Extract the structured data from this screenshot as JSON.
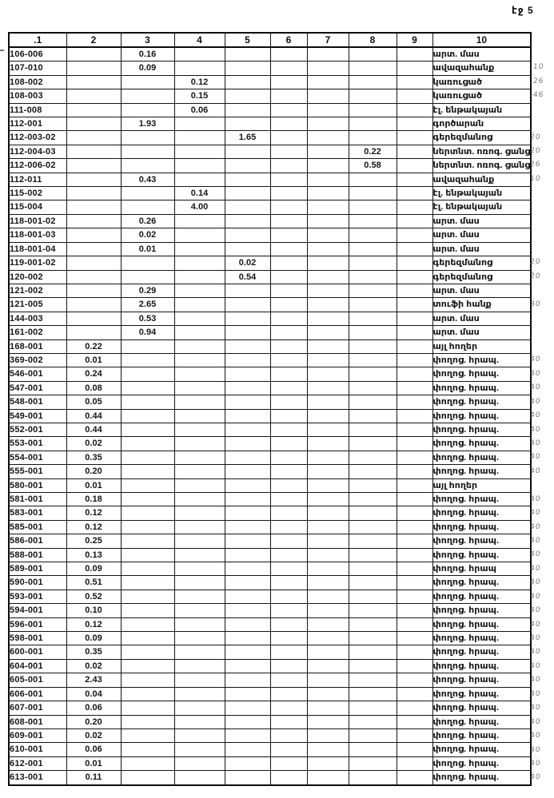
{
  "page": {
    "label": "էջ 5"
  },
  "table": {
    "headers": [
      ".1",
      "2",
      "3",
      "4",
      "5",
      "6",
      "7",
      "8",
      "9",
      "10"
    ],
    "rows": [
      {
        "cells": [
          "106-006",
          "",
          "0.16",
          "",
          "",
          "",
          "",
          "",
          "",
          "արտ. մաս"
        ],
        "mark": ""
      },
      {
        "cells": [
          "107-010",
          "",
          "0.09",
          "",
          "",
          "",
          "",
          "",
          "",
          "ավազահանք"
        ],
        "mark": ".10"
      },
      {
        "cells": [
          "108-002",
          "",
          "",
          "0.12",
          "",
          "",
          "",
          "",
          "",
          "կառուցած"
        ],
        "mark": ".26"
      },
      {
        "cells": [
          "108-003",
          "",
          "",
          "0.15",
          "",
          "",
          "",
          "",
          "",
          "կառուցած"
        ],
        "mark": ".46"
      },
      {
        "cells": [
          "111-008",
          "",
          "",
          "0.06",
          "",
          "",
          "",
          "",
          "",
          "էլ. ենթակայան"
        ],
        "mark": ""
      },
      {
        "cells": [
          "112-001",
          "",
          "1.93",
          "",
          "",
          "",
          "",
          "",
          "",
          "գործարան"
        ],
        "mark": ""
      },
      {
        "cells": [
          "112-003-02",
          "",
          "",
          "",
          "1.65",
          "",
          "",
          "",
          "",
          "գերեզմանոց"
        ],
        "mark": "20"
      },
      {
        "cells": [
          "112-004-03",
          "",
          "",
          "",
          "",
          "",
          "",
          "0.22",
          "",
          "ներտնտ. ոռոգ. ցանց"
        ],
        "mark": "20"
      },
      {
        "cells": [
          "112-006-02",
          "",
          "",
          "",
          "",
          "",
          "",
          "0.58",
          "",
          "ներտնտ. ոռոգ. ցանց"
        ],
        "mark": "26"
      },
      {
        "cells": [
          "112-011",
          "",
          "0.43",
          "",
          "",
          "",
          "",
          "",
          "",
          "ավազահանք"
        ],
        "mark": "10"
      },
      {
        "cells": [
          "115-002",
          "",
          "",
          "0.14",
          "",
          "",
          "",
          "",
          "",
          "էլ. ենթակայան"
        ],
        "mark": ""
      },
      {
        "cells": [
          "115-004",
          "",
          "",
          "4.00",
          "",
          "",
          "",
          "",
          "",
          "էլ. ենթակայան"
        ],
        "mark": ""
      },
      {
        "cells": [
          "118-001-02",
          "",
          "0.26",
          "",
          "",
          "",
          "",
          "",
          "",
          "արտ. մաս"
        ],
        "mark": ""
      },
      {
        "cells": [
          "118-001-03",
          "",
          "0.02",
          "",
          "",
          "",
          "",
          "",
          "",
          "արտ. մաս"
        ],
        "mark": ""
      },
      {
        "cells": [
          "118-001-04",
          "",
          "0.01",
          "",
          "",
          "",
          "",
          "",
          "",
          "արտ. մաս"
        ],
        "mark": ""
      },
      {
        "cells": [
          "119-001-02",
          "",
          "",
          "",
          "0.02",
          "",
          "",
          "",
          "",
          "գերեզմանոց"
        ],
        "mark": "20"
      },
      {
        "cells": [
          "120-002",
          "",
          "",
          "",
          "0.54",
          "",
          "",
          "",
          "",
          "գերեզմանոց"
        ],
        "mark": "20"
      },
      {
        "cells": [
          "121-002",
          "",
          "0.29",
          "",
          "",
          "",
          "",
          "",
          "",
          "արտ. մաս"
        ],
        "mark": ""
      },
      {
        "cells": [
          "121-005",
          "",
          "2.65",
          "",
          "",
          "",
          "",
          "",
          "",
          "տուֆի հանք"
        ],
        "mark": "30"
      },
      {
        "cells": [
          "144-003",
          "",
          "0.53",
          "",
          "",
          "",
          "",
          "",
          "",
          "արտ. մաս"
        ],
        "mark": ""
      },
      {
        "cells": [
          "161-002",
          "",
          "0.94",
          "",
          "",
          "",
          "",
          "",
          "",
          "արտ. մաս"
        ],
        "mark": ""
      },
      {
        "cells": [
          "168-001",
          "0.22",
          "",
          "",
          "",
          "",
          "",
          "",
          "",
          "այլ հողեր"
        ],
        "mark": ""
      },
      {
        "cells": [
          "369-002",
          "0.01",
          "",
          "",
          "",
          "",
          "",
          "",
          "",
          "փողոց. հրապ."
        ],
        "mark": "40"
      },
      {
        "cells": [
          "546-001",
          "0.24",
          "",
          "",
          "",
          "",
          "",
          "",
          "",
          "փողոց. հրապ."
        ],
        "mark": "40"
      },
      {
        "cells": [
          "547-001",
          "0.08",
          "",
          "",
          "",
          "",
          "",
          "",
          "",
          "փողոց. հրապ."
        ],
        "mark": "40"
      },
      {
        "cells": [
          "548-001",
          "0.05",
          "",
          "",
          "",
          "",
          "",
          "",
          "",
          "փողոց. հրապ."
        ],
        "mark": "40"
      },
      {
        "cells": [
          "549-001",
          "0.44",
          "",
          "",
          "",
          "",
          "",
          "",
          "",
          "փողոց. հրապ."
        ],
        "mark": "40"
      },
      {
        "cells": [
          "552-001",
          "0.44",
          "",
          "",
          "",
          "",
          "",
          "",
          "",
          "փողոց. հրապ."
        ],
        "mark": "40"
      },
      {
        "cells": [
          "553-001",
          "0.02",
          "",
          "",
          "",
          "",
          "",
          "",
          "",
          "փողոց. հրապ."
        ],
        "mark": "40"
      },
      {
        "cells": [
          "554-001",
          "0.35",
          "",
          "",
          "",
          "",
          "",
          "",
          "",
          "փողոց. հրապ."
        ],
        "mark": "40"
      },
      {
        "cells": [
          "555-001",
          "0.20",
          "",
          "",
          "",
          "",
          "",
          "",
          "",
          "փողոց. հրապ."
        ],
        "mark": "40"
      },
      {
        "cells": [
          "580-001",
          "0.01",
          "",
          "",
          "",
          "",
          "",
          "",
          "",
          "այլ հողեր"
        ],
        "mark": ""
      },
      {
        "cells": [
          "581-001",
          "0.18",
          "",
          "",
          "",
          "",
          "",
          "",
          "",
          "փողոց. հրապ."
        ],
        "mark": "40"
      },
      {
        "cells": [
          "583-001",
          "0.12",
          "",
          "",
          "",
          "",
          "",
          "",
          "",
          "փողոց. հրապ."
        ],
        "mark": "40"
      },
      {
        "cells": [
          "585-001",
          "0.12",
          "",
          "",
          "",
          "",
          "",
          "",
          "",
          "փողոց. հրապ."
        ],
        "mark": "40"
      },
      {
        "cells": [
          "586-001",
          "0.25",
          "",
          "",
          "",
          "",
          "",
          "",
          "",
          "փողոց. հրապ."
        ],
        "mark": "40"
      },
      {
        "cells": [
          "588-001",
          "0.13",
          "",
          "",
          "",
          "",
          "",
          "",
          "",
          "փողոց. հրապ."
        ],
        "mark": "40"
      },
      {
        "cells": [
          "589-001",
          "0.09",
          "",
          "",
          "",
          "",
          "",
          "",
          "",
          "փողոց. հրապ"
        ],
        "mark": "40"
      },
      {
        "cells": [
          "590-001",
          "0.51",
          "",
          "",
          "",
          "",
          "",
          "",
          "",
          "փողոց. հրապ."
        ],
        "mark": "40"
      },
      {
        "cells": [
          "593-001",
          "0.52",
          "",
          "",
          "",
          "",
          "",
          "",
          "",
          "փողոց. հրապ."
        ],
        "mark": "40"
      },
      {
        "cells": [
          "594-001",
          "0.10",
          "",
          "",
          "",
          "",
          "",
          "",
          "",
          "փողոց. հրապ."
        ],
        "mark": "40"
      },
      {
        "cells": [
          "596-001",
          "0.12",
          "",
          "",
          "",
          "",
          "",
          "",
          "",
          "փողոց. հրապ."
        ],
        "mark": "40"
      },
      {
        "cells": [
          "598-001",
          "0.09",
          "",
          "",
          "",
          "",
          "",
          "",
          "",
          "փողոց. հրապ."
        ],
        "mark": "40"
      },
      {
        "cells": [
          "600-001",
          "0.35",
          "",
          "",
          "",
          "",
          "",
          "",
          "",
          "փողոց. հրապ."
        ],
        "mark": "40"
      },
      {
        "cells": [
          "604-001",
          "0.02",
          "",
          "",
          "",
          "",
          "",
          "",
          "",
          "փողոց. հրապ."
        ],
        "mark": "40"
      },
      {
        "cells": [
          "605-001",
          "2.43",
          "",
          "",
          "",
          "",
          "",
          "",
          "",
          "փողոց. հրապ."
        ],
        "mark": "40"
      },
      {
        "cells": [
          "606-001",
          "0.04",
          "",
          "",
          "",
          "",
          "",
          "",
          "",
          "փողոց. հրապ."
        ],
        "mark": "40"
      },
      {
        "cells": [
          "607-001",
          "0.06",
          "",
          "",
          "",
          "",
          "",
          "",
          "",
          "փողոց. հրապ."
        ],
        "mark": "40"
      },
      {
        "cells": [
          "608-001",
          "0.20",
          "",
          "",
          "",
          "",
          "",
          "",
          "",
          "փողոց. հրապ."
        ],
        "mark": "40"
      },
      {
        "cells": [
          "609-001",
          "0.02",
          "",
          "",
          "",
          "",
          "",
          "",
          "",
          "փողոց. հրապ."
        ],
        "mark": "40"
      },
      {
        "cells": [
          "610-001",
          "0.06",
          "",
          "",
          "",
          "",
          "",
          "",
          "",
          "փողոց. հրապ."
        ],
        "mark": "40"
      },
      {
        "cells": [
          "612-001",
          "0.01",
          "",
          "",
          "",
          "",
          "",
          "",
          "",
          "փողոց. հրապ."
        ],
        "mark": "40"
      },
      {
        "cells": [
          "613-001",
          "0.11",
          "",
          "",
          "",
          "",
          "",
          "",
          "",
          "փողոց. հրապ."
        ],
        "mark": "40"
      }
    ]
  }
}
